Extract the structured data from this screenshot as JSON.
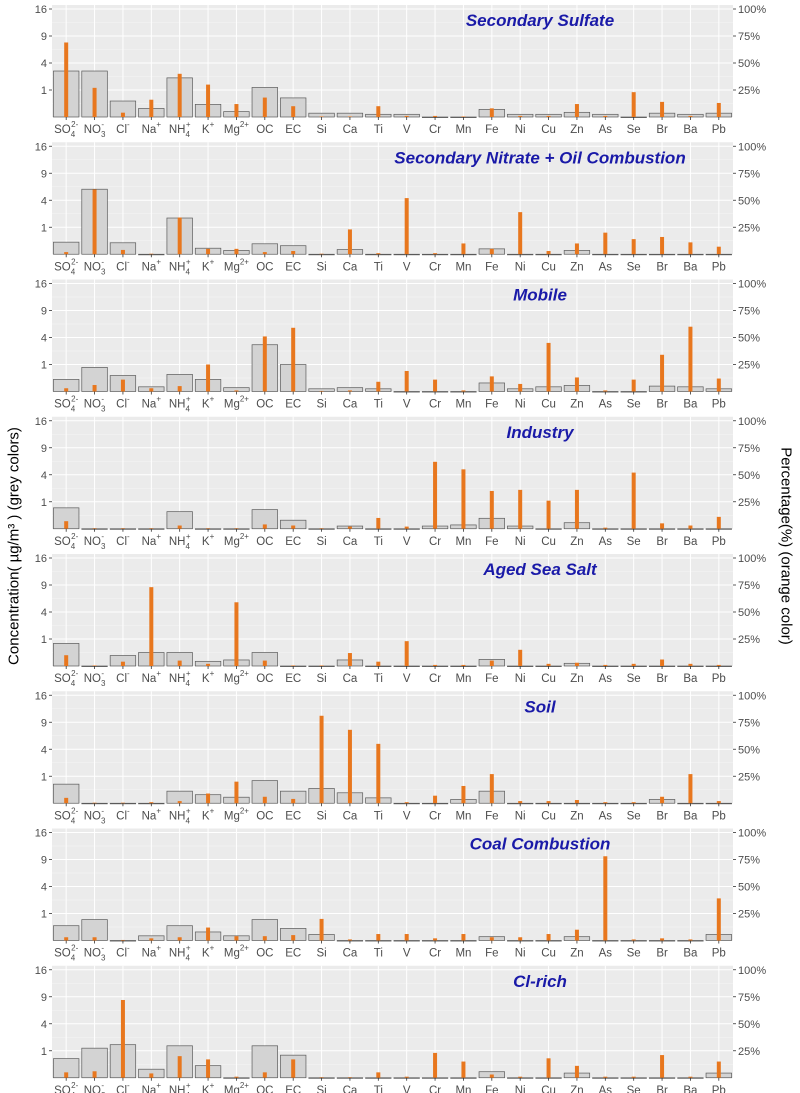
{
  "figure": {
    "ylabel_left": "Concentration( µg/m³ ) (grey colors)",
    "ylabel_right": "Percentage(%) (orange color)",
    "left_ticks": [
      "16",
      "9",
      "4",
      "1"
    ],
    "left_tick_values": [
      16,
      9,
      4,
      1
    ],
    "right_ticks": [
      "100%",
      "75%",
      "50%",
      "25%"
    ],
    "right_tick_values": [
      100,
      75,
      50,
      25
    ],
    "colors": {
      "concentration": "#d3d3d3",
      "concentration_edge": "#5a5a5a",
      "percentage": "#e8771e",
      "panel_bg": "#ebebeb",
      "title": "#1a1aa8"
    }
  },
  "categories": [
    "SO4 2-",
    "NO3 -",
    "Cl-",
    "Na+",
    "NH4 +",
    "K+",
    "Mg2+",
    "OC",
    "EC",
    "Si",
    "Ca",
    "Ti",
    "V",
    "Cr",
    "Mn",
    "Fe",
    "Ni",
    "Cu",
    "Zn",
    "As",
    "Se",
    "Br",
    "Ba",
    "Pb"
  ],
  "chart_data": [
    {
      "type": "bar",
      "title": "Secondary Sulfate",
      "y_scale": "sqrt",
      "ylim": [
        0,
        16
      ],
      "y2lim": [
        0,
        100
      ],
      "series": [
        {
          "name": "Concentration",
          "axis": "left",
          "values": [
            2.9,
            2.9,
            0.35,
            0.1,
            2.1,
            0.22,
            0.04,
            1.2,
            0.5,
            0.02,
            0.02,
            0.01,
            0.01,
            0.0,
            0.0,
            0.08,
            0.01,
            0.01,
            0.03,
            0.01,
            0.0,
            0.02,
            0.01,
            0.02
          ]
        },
        {
          "name": "Percentage",
          "axis": "right",
          "values": [
            69,
            27,
            4,
            16,
            40,
            30,
            12,
            18,
            10,
            0.5,
            0.5,
            10,
            1,
            1,
            0.5,
            8,
            1,
            1,
            12,
            1,
            23,
            14,
            1,
            13
          ]
        }
      ]
    },
    {
      "type": "bar",
      "title": "Secondary Nitrate + Oil Combustion",
      "y_scale": "sqrt",
      "ylim": [
        0,
        16
      ],
      "y2lim": [
        0,
        100
      ],
      "series": [
        {
          "name": "Concentration",
          "axis": "left",
          "values": [
            0.2,
            5.8,
            0.18,
            0.0,
            1.8,
            0.05,
            0.02,
            0.15,
            0.1,
            0.0,
            0.03,
            0.0,
            0.0,
            0.0,
            0.0,
            0.04,
            0.0,
            0.0,
            0.02,
            0.0,
            0.0,
            0.0,
            0.0,
            0.0
          ]
        },
        {
          "name": "Percentage",
          "axis": "right",
          "values": [
            2,
            60,
            4,
            0.5,
            34,
            5,
            5,
            2,
            3,
            0.5,
            23,
            1,
            52,
            1,
            10,
            5,
            39,
            3,
            10,
            20,
            14,
            16,
            11,
            7
          ]
        }
      ]
    },
    {
      "type": "bar",
      "title": "Mobile",
      "y_scale": "sqrt",
      "ylim": [
        0,
        16
      ],
      "y2lim": [
        0,
        100
      ],
      "series": [
        {
          "name": "Concentration",
          "axis": "left",
          "values": [
            0.2,
            0.8,
            0.35,
            0.03,
            0.4,
            0.2,
            0.02,
            3.0,
            1.0,
            0.01,
            0.02,
            0.01,
            0.0,
            0.0,
            0.0,
            0.1,
            0.01,
            0.03,
            0.05,
            0.0,
            0.0,
            0.04,
            0.03,
            0.01
          ]
        },
        {
          "name": "Percentage",
          "axis": "right",
          "values": [
            3,
            6,
            11,
            3,
            5,
            25,
            1,
            51,
            59,
            0.5,
            1,
            9,
            19,
            11,
            1,
            14,
            7,
            45,
            13,
            1,
            11,
            34,
            60,
            12
          ]
        }
      ]
    },
    {
      "type": "bar",
      "title": "Industry",
      "y_scale": "sqrt",
      "ylim": [
        0,
        16
      ],
      "y2lim": [
        0,
        100
      ],
      "series": [
        {
          "name": "Concentration",
          "axis": "left",
          "values": [
            0.6,
            0.0,
            0.0,
            0.0,
            0.4,
            0.0,
            0.0,
            0.5,
            0.1,
            0.0,
            0.01,
            0.0,
            0.0,
            0.01,
            0.02,
            0.15,
            0.01,
            0.0,
            0.05,
            0.0,
            0.0,
            0.0,
            0.0,
            0.0
          ]
        },
        {
          "name": "Percentage",
          "axis": "right",
          "values": [
            7,
            0.5,
            0.5,
            0.5,
            3,
            0.5,
            0.5,
            4,
            3,
            0.5,
            2,
            10,
            2,
            62,
            55,
            35,
            36,
            26,
            36,
            1,
            52,
            5,
            3,
            11
          ]
        }
      ]
    },
    {
      "type": "bar",
      "title": "Aged Sea Salt",
      "y_scale": "sqrt",
      "ylim": [
        0,
        16
      ],
      "y2lim": [
        0,
        100
      ],
      "series": [
        {
          "name": "Concentration",
          "axis": "left",
          "values": [
            0.7,
            0.0,
            0.15,
            0.25,
            0.25,
            0.03,
            0.05,
            0.25,
            0.0,
            0.0,
            0.05,
            0.0,
            0.0,
            0.0,
            0.0,
            0.06,
            0.0,
            0.0,
            0.01,
            0.0,
            0.0,
            0.0,
            0.0,
            0.0
          ]
        },
        {
          "name": "Percentage",
          "axis": "right",
          "values": [
            10,
            0.5,
            4,
            73,
            5,
            2,
            59,
            5,
            0.5,
            0.5,
            12,
            4,
            23,
            1,
            1,
            5,
            15,
            2,
            3,
            1,
            2,
            6,
            2,
            1
          ]
        }
      ]
    },
    {
      "type": "bar",
      "title": "Soil",
      "y_scale": "sqrt",
      "ylim": [
        0,
        16
      ],
      "y2lim": [
        0,
        100
      ],
      "series": [
        {
          "name": "Concentration",
          "axis": "left",
          "values": [
            0.5,
            0.0,
            0.0,
            0.0,
            0.2,
            0.1,
            0.05,
            0.7,
            0.2,
            0.3,
            0.15,
            0.04,
            0.0,
            0.0,
            0.02,
            0.2,
            0.0,
            0.0,
            0.0,
            0.0,
            0.0,
            0.02,
            0.0,
            0.0
          ]
        },
        {
          "name": "Percentage",
          "axis": "right",
          "values": [
            5,
            0.5,
            0.5,
            1,
            2,
            9,
            20,
            6,
            4,
            81,
            68,
            55,
            1,
            7,
            16,
            27,
            2,
            2,
            3,
            1,
            1,
            6,
            27,
            2
          ]
        }
      ]
    },
    {
      "type": "bar",
      "title": "Coal Combustion",
      "y_scale": "sqrt",
      "ylim": [
        0,
        16
      ],
      "y2lim": [
        0,
        100
      ],
      "series": [
        {
          "name": "Concentration",
          "axis": "left",
          "values": [
            0.3,
            0.6,
            0.0,
            0.03,
            0.3,
            0.1,
            0.03,
            0.6,
            0.2,
            0.05,
            0.0,
            0.0,
            0.0,
            0.0,
            0.0,
            0.02,
            0.0,
            0.0,
            0.02,
            0.0,
            0.0,
            0.0,
            0.0,
            0.05
          ]
        },
        {
          "name": "Percentage",
          "axis": "right",
          "values": [
            3,
            3,
            0.5,
            2,
            3,
            12,
            4,
            4,
            5,
            20,
            1,
            6,
            6,
            2,
            6,
            3,
            3,
            6,
            10,
            78,
            1,
            2,
            1,
            39
          ]
        }
      ]
    },
    {
      "type": "bar",
      "title": "Cl-rich",
      "y_scale": "sqrt",
      "ylim": [
        0,
        16
      ],
      "y2lim": [
        0,
        100
      ],
      "series": [
        {
          "name": "Concentration",
          "axis": "left",
          "values": [
            0.5,
            1.2,
            1.5,
            0.1,
            1.4,
            0.2,
            0.0,
            1.4,
            0.7,
            0.0,
            0.0,
            0.0,
            0.0,
            0.0,
            0.0,
            0.05,
            0.0,
            0.0,
            0.03,
            0.0,
            0.0,
            0.0,
            0.0,
            0.03
          ]
        },
        {
          "name": "Percentage",
          "axis": "right",
          "values": [
            5,
            6,
            72,
            4,
            20,
            17,
            1,
            5,
            17,
            0.5,
            0.5,
            5,
            1,
            23,
            15,
            3,
            1,
            18,
            11,
            1,
            1,
            21,
            1,
            15
          ]
        }
      ]
    }
  ]
}
